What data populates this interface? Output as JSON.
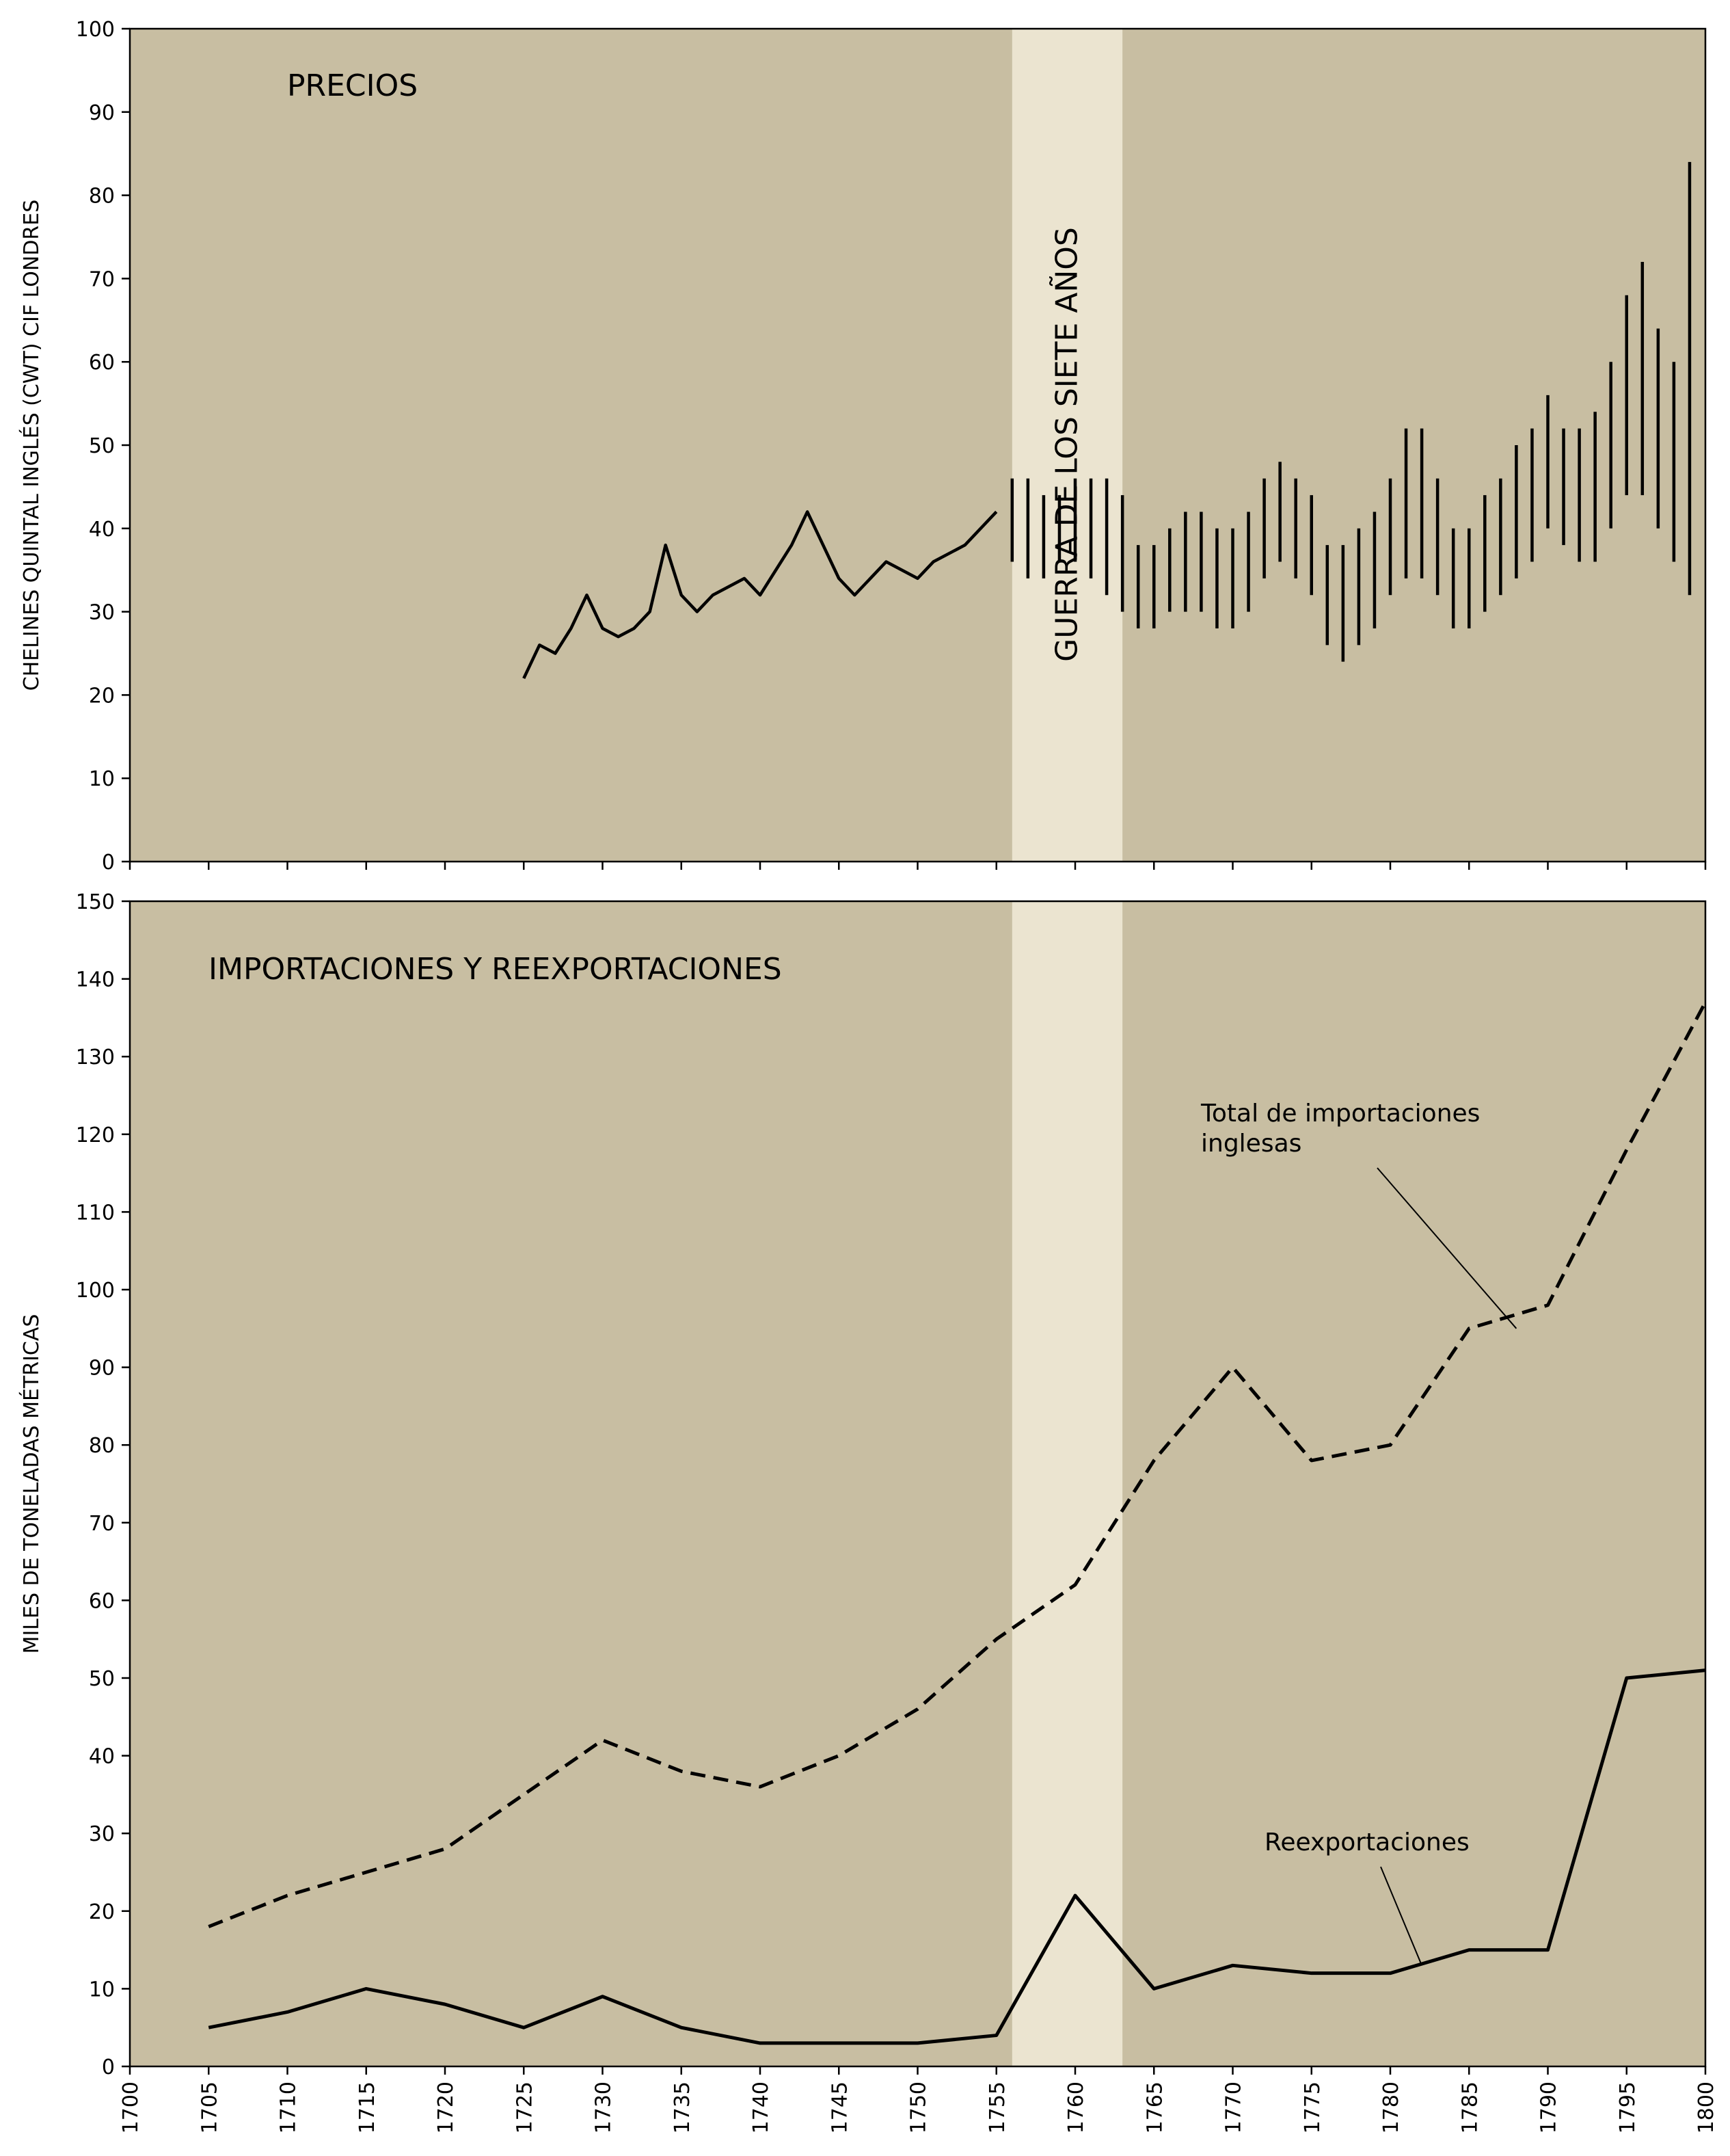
{
  "colors": {
    "background": "#c8bea2",
    "war_band": "#ebe4d0",
    "line": "#000000"
  },
  "chart_data": [
    {
      "type": "line",
      "title": "PRECIOS",
      "ylabel": "CHELINES QUINTAL INGLÉS (CWT) CIF LONDRES",
      "xlabel": "",
      "xlim": [
        1700,
        1800
      ],
      "ylim": [
        0,
        100
      ],
      "y_ticks": [
        0,
        10,
        20,
        30,
        40,
        50,
        60,
        70,
        80,
        90,
        100
      ],
      "grid": false,
      "shaded_band": {
        "x_range": [
          1756,
          1763
        ],
        "label": "GUERRA DE LOS SIETE AÑOS"
      },
      "series": [
        {
          "style": "solid",
          "x": [
            1725,
            1726,
            1727,
            1728,
            1729,
            1730,
            1731,
            1732,
            1733,
            1734,
            1735,
            1736,
            1737,
            1739,
            1740,
            1742,
            1743,
            1745,
            1746,
            1748,
            1750,
            1751,
            1753,
            1755
          ],
          "y": [
            22,
            26,
            25,
            28,
            32,
            28,
            27,
            28,
            30,
            38,
            32,
            30,
            32,
            34,
            32,
            38,
            42,
            34,
            32,
            36,
            34,
            36,
            38,
            42
          ]
        }
      ],
      "ranges": {
        "style": "vertical-bars",
        "x": [
          1756,
          1757,
          1758,
          1759,
          1760,
          1761,
          1762,
          1763,
          1764,
          1765,
          1766,
          1767,
          1768,
          1769,
          1770,
          1771,
          1772,
          1773,
          1774,
          1775,
          1776,
          1777,
          1778,
          1779,
          1780,
          1781,
          1782,
          1783,
          1784,
          1785,
          1786,
          1787,
          1788,
          1789,
          1790,
          1791,
          1792,
          1793,
          1794,
          1795,
          1796,
          1797,
          1798,
          1799
        ],
        "low": [
          36,
          34,
          34,
          36,
          36,
          34,
          32,
          30,
          28,
          28,
          30,
          30,
          30,
          28,
          28,
          30,
          34,
          36,
          34,
          32,
          26,
          24,
          26,
          28,
          32,
          34,
          34,
          32,
          28,
          28,
          30,
          32,
          34,
          36,
          40,
          38,
          36,
          36,
          40,
          44,
          44,
          40,
          36,
          32
        ],
        "high": [
          46,
          46,
          44,
          44,
          46,
          46,
          46,
          44,
          38,
          38,
          40,
          42,
          42,
          40,
          40,
          42,
          46,
          48,
          46,
          44,
          38,
          38,
          40,
          42,
          46,
          52,
          52,
          46,
          40,
          40,
          44,
          46,
          50,
          52,
          56,
          52,
          52,
          54,
          60,
          68,
          72,
          64,
          60,
          84
        ]
      }
    },
    {
      "type": "line",
      "title": "IMPORTACIONES Y REEXPORTACIONES",
      "ylabel": "MILES DE TONELADAS MÉTRICAS",
      "xlabel": "",
      "xlim": [
        1700,
        1800
      ],
      "ylim": [
        0,
        150
      ],
      "x_ticks": [
        1700,
        1705,
        1710,
        1715,
        1720,
        1725,
        1730,
        1735,
        1740,
        1745,
        1750,
        1755,
        1760,
        1765,
        1770,
        1775,
        1780,
        1785,
        1790,
        1795,
        1800
      ],
      "y_ticks": [
        0,
        10,
        20,
        30,
        40,
        50,
        60,
        70,
        80,
        90,
        100,
        110,
        120,
        130,
        140,
        150
      ],
      "grid": false,
      "shaded_band": {
        "x_range": [
          1756,
          1763
        ]
      },
      "series": [
        {
          "name": "Total de importaciones inglesas",
          "style": "dashed",
          "x": [
            1705,
            1710,
            1715,
            1720,
            1725,
            1730,
            1735,
            1740,
            1745,
            1750,
            1755,
            1760,
            1765,
            1770,
            1775,
            1780,
            1785,
            1790,
            1795,
            1800
          ],
          "y": [
            18,
            22,
            25,
            28,
            35,
            42,
            38,
            36,
            40,
            46,
            55,
            62,
            78,
            90,
            78,
            80,
            95,
            98,
            118,
            137
          ]
        },
        {
          "name": "Reexportaciones",
          "style": "solid",
          "x": [
            1705,
            1710,
            1715,
            1720,
            1725,
            1730,
            1735,
            1740,
            1745,
            1750,
            1755,
            1760,
            1765,
            1770,
            1775,
            1780,
            1785,
            1790,
            1795,
            1800
          ],
          "y": [
            5,
            7,
            10,
            8,
            5,
            9,
            5,
            3,
            3,
            3,
            4,
            22,
            10,
            13,
            12,
            12,
            15,
            15,
            50,
            51
          ]
        }
      ],
      "annotations": [
        {
          "text_lines": [
            "Total de importaciones",
            "inglesas"
          ],
          "points_to": {
            "x": 1788,
            "y": 95
          }
        },
        {
          "text_lines": [
            "Reexportaciones"
          ],
          "points_to": {
            "x": 1782,
            "y": 13
          }
        }
      ]
    }
  ]
}
